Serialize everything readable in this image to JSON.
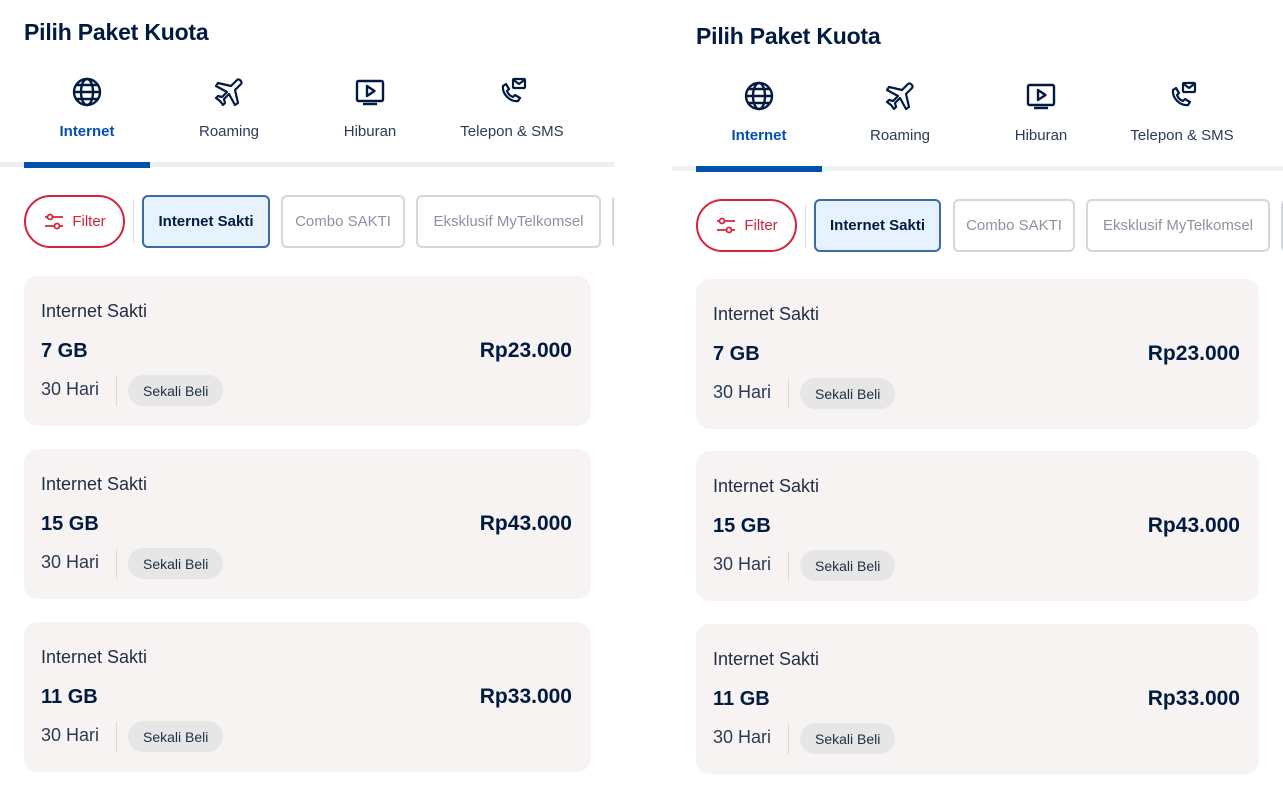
{
  "panels": [
    {
      "title": "Pilih Paket Kuota",
      "tabs": [
        {
          "label": "Internet",
          "icon": "globe-icon"
        },
        {
          "label": "Roaming",
          "icon": "airplane-icon"
        },
        {
          "label": "Hiburan",
          "icon": "play-icon"
        },
        {
          "label": "Telepon & SMS",
          "icon": "phone-message-icon"
        }
      ],
      "filter_label": "Filter",
      "chips": [
        "Internet Sakti",
        "Combo SAKTI",
        "Eksklusif MyTelkomsel"
      ],
      "cards": [
        {
          "name": "Internet Sakti",
          "size": "7 GB",
          "price": "Rp23.000",
          "days": "30 Hari",
          "badge": "Sekali Beli"
        },
        {
          "name": "Internet Sakti",
          "size": "15 GB",
          "price": "Rp43.000",
          "days": "30 Hari",
          "badge": "Sekali Beli"
        },
        {
          "name": "Internet Sakti",
          "size": "11 GB",
          "price": "Rp33.000",
          "days": "30 Hari",
          "badge": "Sekali Beli"
        }
      ]
    },
    {
      "title": "Pilih Paket Kuota",
      "tabs": [
        {
          "label": "Internet",
          "icon": "globe-icon"
        },
        {
          "label": "Roaming",
          "icon": "airplane-icon"
        },
        {
          "label": "Hiburan",
          "icon": "play-icon"
        },
        {
          "label": "Telepon & SMS",
          "icon": "phone-message-icon"
        }
      ],
      "filter_label": "Filter",
      "chips": [
        "Internet Sakti",
        "Combo SAKTI",
        "Eksklusif MyTelkomsel"
      ],
      "cards": [
        {
          "name": "Internet Sakti",
          "size": "7 GB",
          "price": "Rp23.000",
          "days": "30 Hari",
          "badge": "Sekali Beli"
        },
        {
          "name": "Internet Sakti",
          "size": "15 GB",
          "price": "Rp43.000",
          "days": "30 Hari",
          "badge": "Sekali Beli"
        },
        {
          "name": "Internet Sakti",
          "size": "11 GB",
          "price": "Rp33.000",
          "days": "30 Hari",
          "badge": "Sekali Beli"
        }
      ]
    }
  ],
  "colors": {
    "brand_blue": "#0050ae",
    "navy_text": "#001a41",
    "filter_red": "#d5243a",
    "card_bg": "#f7f3f2",
    "active_chip_bg": "#e6f2fd"
  }
}
